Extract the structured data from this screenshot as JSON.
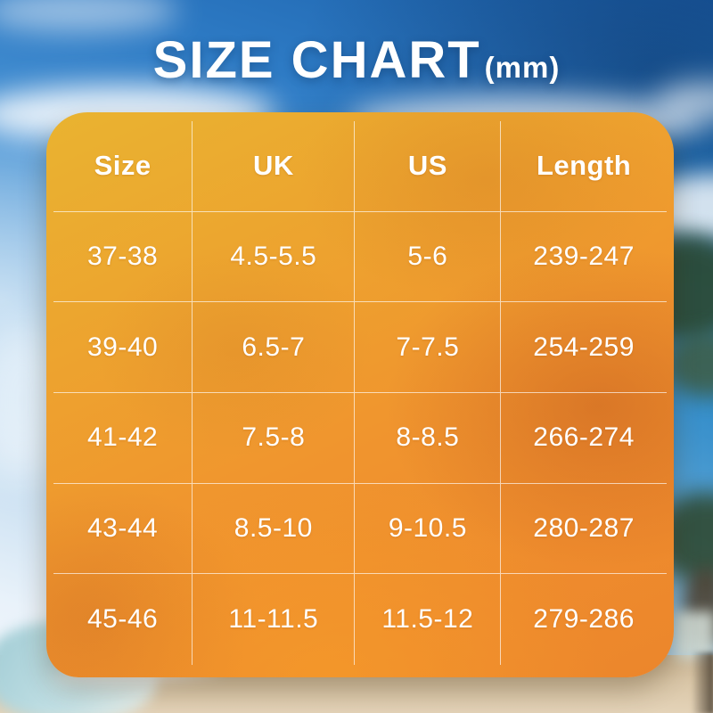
{
  "title": {
    "main": "SIZE CHART",
    "unit": "(mm)"
  },
  "chart_data": {
    "type": "table",
    "title": "SIZE CHART (mm)",
    "unit": "mm",
    "columns": [
      "Size",
      "UK",
      "US",
      "Length"
    ],
    "rows": [
      [
        "37-38",
        "4.5-5.5",
        "5-6",
        "239-247"
      ],
      [
        "39-40",
        "6.5-7",
        "7-7.5",
        "254-259"
      ],
      [
        "41-42",
        "7.5-8",
        "8-8.5",
        "266-274"
      ],
      [
        "43-44",
        "8.5-10",
        "9-10.5",
        "280-287"
      ],
      [
        "45-46",
        "11-11.5",
        "11.5-12",
        "279-286"
      ]
    ]
  },
  "style": {
    "title_color": "#ffffff",
    "table_text_color": "#ffffff",
    "grid_line_color": "rgba(255,255,255,0.65)",
    "panel_gold": "#e9b330",
    "panel_orange": "#f0952e",
    "panel_deep_orange": "#ec862c",
    "sky_blue": "#2d7ac4",
    "sand": "#d9c6a7",
    "palm_green": "#2c4a34"
  }
}
